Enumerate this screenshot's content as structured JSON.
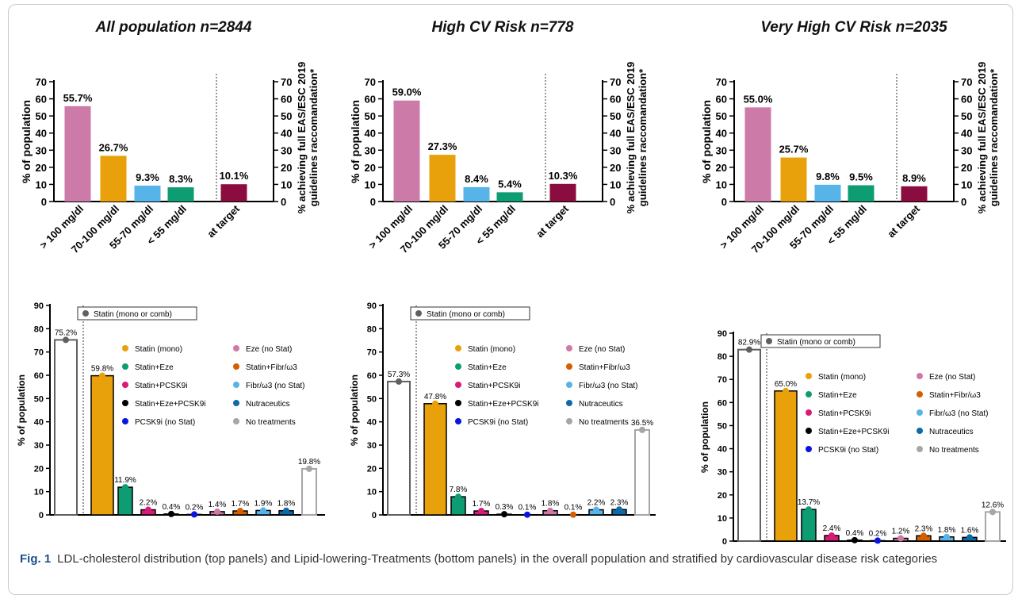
{
  "caption": {
    "label": "Fig. 1",
    "text": "LDL-cholesterol distribution (top panels) and Lipid-lowering-Treatments (bottom panels) in the overall population and stratified by cardiovascular disease risk categories"
  },
  "colors": {
    "gt100": "#cc7aa8",
    "r70_100": "#e8a10a",
    "r55_70": "#56b4e9",
    "lt55": "#0e9c72",
    "at_target": "#8b0c3e",
    "statin_comb": "#606060",
    "statin_mono": "#e8a10a",
    "statin_eze": "#0e9c72",
    "statin_pcsk9i": "#d81b78",
    "statin_eze_pcsk9i": "#000000",
    "pcsk9i": "#0a14e0",
    "eze": "#cc7aa8",
    "statin_fibr": "#d55e00",
    "fibr": "#56b4e9",
    "nutraceutics": "#0f6aa8",
    "no_treatments": "#a6a6a6"
  },
  "chart_data": [
    {
      "type": "bar",
      "title": "All population n=2844",
      "ylabel": "% of population",
      "ylabel_right_1": "% achieving full EAS/ESC 2019",
      "ylabel_right_2": "guidelines raccomandation*",
      "ylim": [
        0,
        70
      ],
      "yticks": [
        0,
        10,
        20,
        30,
        40,
        50,
        60,
        70
      ],
      "categories": [
        "> 100 mg/dl",
        "70-100 mg/dl",
        "55-70 mg/dl",
        "< 55 mg/dl",
        "at target"
      ],
      "values": [
        55.7,
        26.7,
        9.3,
        8.3,
        10.1
      ],
      "labels": [
        "55.7%",
        "26.7%",
        "9.3%",
        "8.3%",
        "10.1%"
      ]
    },
    {
      "type": "bar",
      "title": "High CV Risk n=778",
      "ylabel": "% of population",
      "ylabel_right_1": "% achieving full EAS/ESC 2019",
      "ylabel_right_2": "guidelines raccomandation*",
      "ylim": [
        0,
        70
      ],
      "yticks": [
        0,
        10,
        20,
        30,
        40,
        50,
        60,
        70
      ],
      "categories": [
        "> 100 mg/dl",
        "70-100 mg/dl",
        "55-70 mg/dl",
        "< 55 mg/dl",
        "at target"
      ],
      "values": [
        59.0,
        27.3,
        8.4,
        5.4,
        10.3
      ],
      "labels": [
        "59.0%",
        "27.3%",
        "8.4%",
        "5.4%",
        "10.3%"
      ]
    },
    {
      "type": "bar",
      "title": "Very High CV Risk n=2035",
      "ylabel": "% of population",
      "ylabel_right_1": "% achieving full EAS/ESC 2019",
      "ylabel_right_2": "guidelines raccomandation*",
      "ylim": [
        0,
        70
      ],
      "yticks": [
        0,
        10,
        20,
        30,
        40,
        50,
        60,
        70
      ],
      "categories": [
        "> 100 mg/dl",
        "70-100 mg/dl",
        "55-70 mg/dl",
        "< 55 mg/dl",
        "at target"
      ],
      "values": [
        55.0,
        25.7,
        9.8,
        9.5,
        8.9
      ],
      "labels": [
        "55.0%",
        "25.7%",
        "9.8%",
        "9.5%",
        "8.9%"
      ]
    },
    {
      "type": "bar",
      "ylabel": "% of population",
      "ylim": [
        0,
        90
      ],
      "yticks": [
        0,
        10,
        20,
        30,
        40,
        50,
        60,
        70,
        80,
        90
      ],
      "categories": [
        "Statin (mono or comb)",
        "Statin (mono)",
        "Statin+Eze",
        "Statin+PCSK9i",
        "Statin+Eze+PCSK9i",
        "PCSK9i (no Stat)",
        "Eze (no Stat)",
        "Statin+Fibr/ω3",
        "Fibr/ω3 (no Stat)",
        "Nutraceutics",
        "No treatments"
      ],
      "values": [
        75.2,
        59.8,
        11.9,
        2.2,
        0.4,
        0.2,
        1.4,
        1.7,
        1.9,
        1.8,
        19.8
      ],
      "labels": [
        "75.2%",
        "59.8%",
        "11.9%",
        "2.2%",
        "0.4%",
        "0.2%",
        "1.4%",
        "1.7%",
        "1.9%",
        "1.8%",
        "19.8%"
      ]
    },
    {
      "type": "bar",
      "ylabel": "% of population",
      "ylim": [
        0,
        90
      ],
      "yticks": [
        0,
        10,
        20,
        30,
        40,
        50,
        60,
        70,
        80,
        90
      ],
      "categories": [
        "Statin (mono or comb)",
        "Statin (mono)",
        "Statin+Eze",
        "Statin+PCSK9i",
        "Statin+Eze+PCSK9i",
        "PCSK9i (no Stat)",
        "Eze (no Stat)",
        "Statin+Fibr/ω3",
        "Fibr/ω3 (no Stat)",
        "Nutraceutics",
        "No treatments"
      ],
      "values": [
        57.3,
        47.8,
        7.8,
        1.7,
        0.3,
        0.1,
        1.8,
        0.1,
        2.2,
        2.3,
        36.5
      ],
      "labels": [
        "57.3%",
        "47.8%",
        "7.8%",
        "1.7%",
        "0.3%",
        "0.1%",
        "1.8%",
        "0.1%",
        "2.2%",
        "2.3%",
        "36.5%"
      ]
    },
    {
      "type": "bar",
      "ylabel": "% of population",
      "ylim": [
        0,
        90
      ],
      "yticks": [
        0,
        10,
        20,
        30,
        40,
        50,
        60,
        70,
        80,
        90
      ],
      "categories": [
        "Statin (mono or comb)",
        "Statin (mono)",
        "Statin+Eze",
        "Statin+PCSK9i",
        "Statin+Eze+PCSK9i",
        "PCSK9i (no Stat)",
        "Eze (no Stat)",
        "Statin+Fibr/ω3",
        "Fibr/ω3 (no Stat)",
        "Nutraceutics",
        "No treatments"
      ],
      "values": [
        82.9,
        65.0,
        13.7,
        2.4,
        0.4,
        0.2,
        1.2,
        2.3,
        1.8,
        1.6,
        12.6
      ],
      "labels": [
        "82.9%",
        "65.0%",
        "13.7%",
        "2.4%",
        "0.4%",
        "0.2%",
        "1.2%",
        "2.3%",
        "1.8%",
        "1.6%",
        "12.6%"
      ]
    }
  ]
}
